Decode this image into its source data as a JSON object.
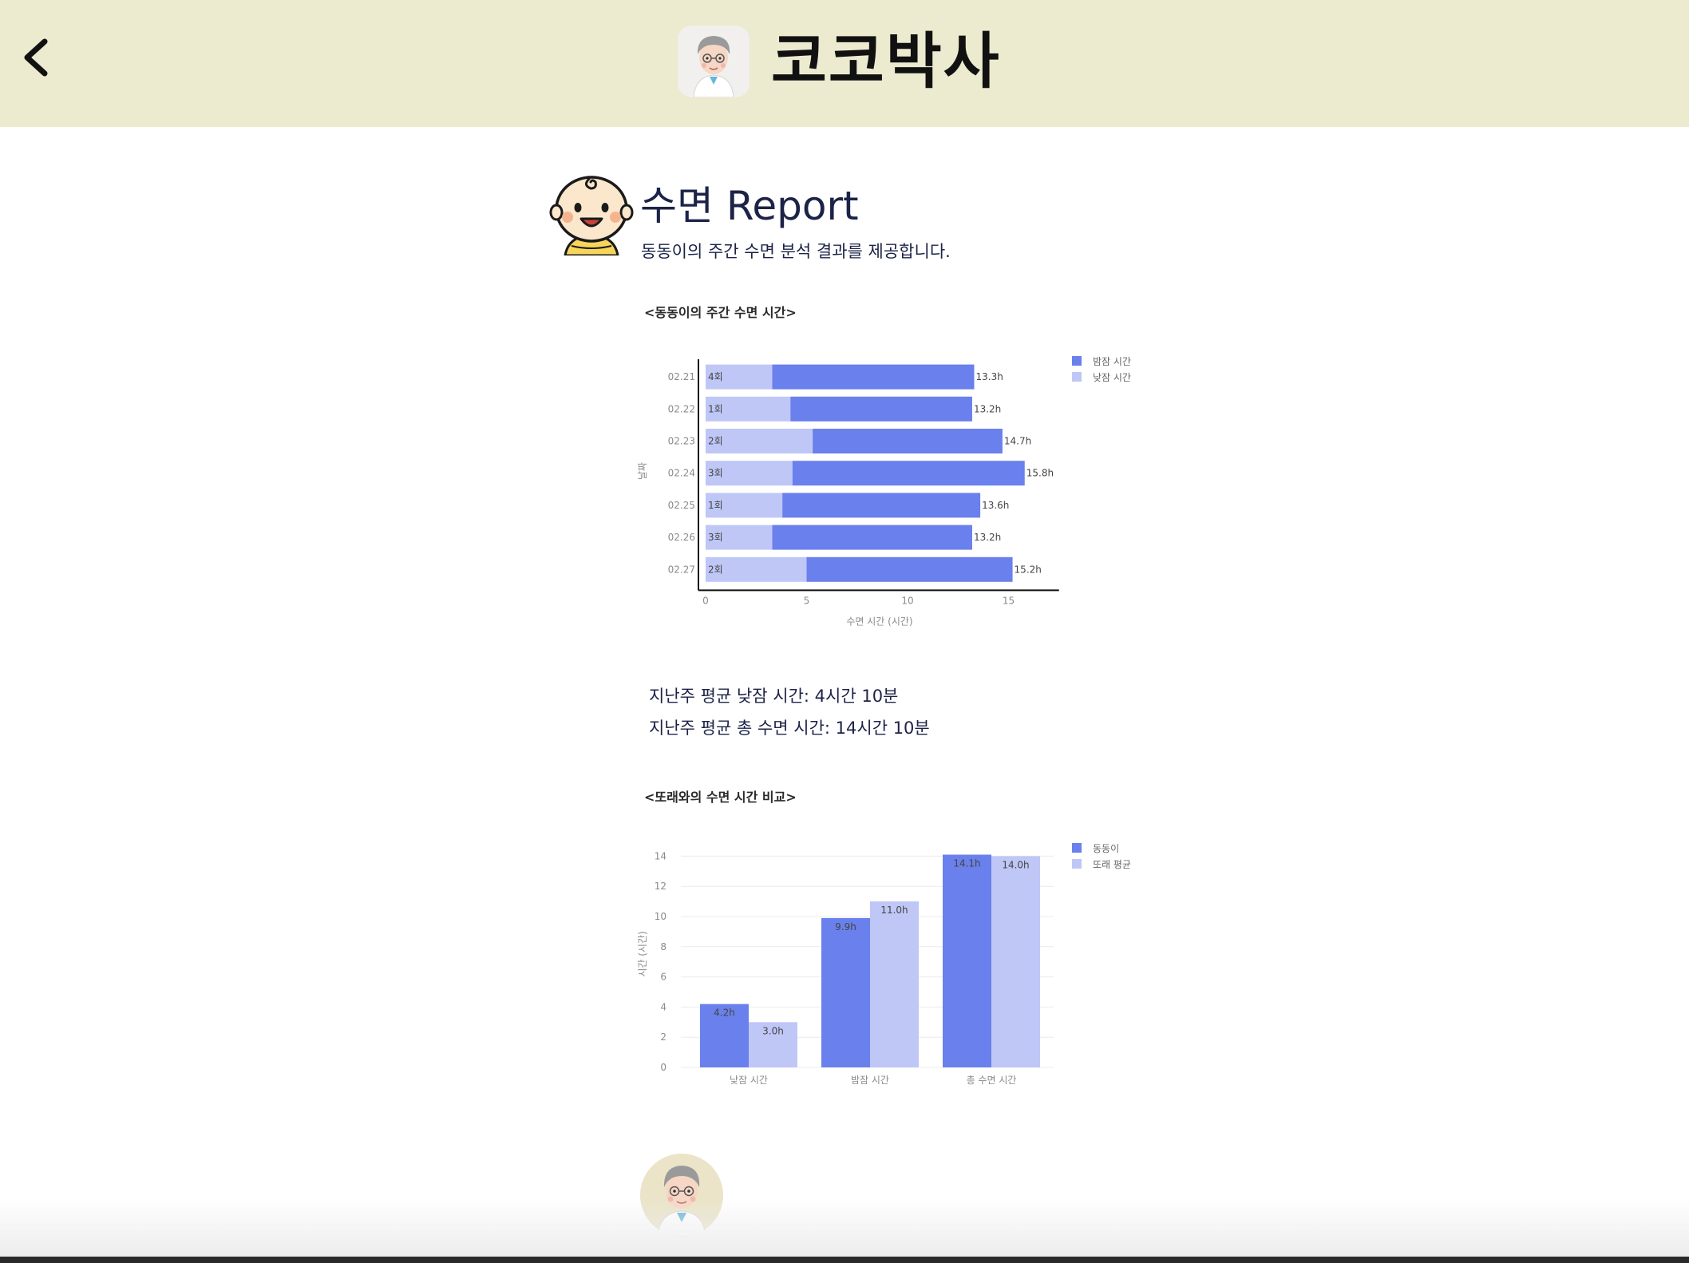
{
  "header": {
    "app_title": "코코박사",
    "back_icon": "chevron-left-icon",
    "logo_icon": "doctor-avatar-icon"
  },
  "report": {
    "title": "수면 Report",
    "subtitle": "동동이의 주간 수면 분석 결과를 제공합니다.",
    "avatar_icon": "baby-face-icon"
  },
  "weekly_chart": {
    "heading": "<동동이의 주간 수면 시간>"
  },
  "stats": {
    "avg_nap": "지난주 평균 낮잠 시간: 4시간 10분",
    "avg_total": "지난주 평균 총 수면 시간: 14시간 10분"
  },
  "compare_chart": {
    "heading": "<또래와의 수면 시간 비교>"
  },
  "footer": {
    "doctor_icon": "doctor-avatar-icon"
  },
  "colors": {
    "header_bg": "#eceacf",
    "night_sleep": "#6a80ec",
    "nap": "#bfc7f7",
    "title_text": "#1c2347"
  },
  "chart_data": [
    {
      "type": "bar",
      "orientation": "horizontal",
      "stacked": true,
      "title": "<동동이의 주간 수면 시간>",
      "xlabel": "수면 시간 (시간)",
      "ylabel": "날짜",
      "xlim": [
        0,
        17.5
      ],
      "xticks": [
        0,
        5,
        10,
        15
      ],
      "categories": [
        "02.21",
        "02.22",
        "02.23",
        "02.24",
        "02.25",
        "02.26",
        "02.27"
      ],
      "series": [
        {
          "name": "낮잠 시간",
          "values": [
            3.3,
            4.2,
            5.3,
            4.3,
            3.8,
            3.3,
            5.0
          ],
          "color": "#bfc7f7"
        },
        {
          "name": "밤잠 시간",
          "values": [
            10.0,
            9.0,
            9.4,
            11.5,
            9.8,
            9.9,
            10.2
          ],
          "color": "#6a80ec"
        }
      ],
      "nap_counts": [
        "4회",
        "1회",
        "2회",
        "3회",
        "1회",
        "3회",
        "2회"
      ],
      "total_labels": [
        "13.3h",
        "13.2h",
        "14.7h",
        "15.8h",
        "13.6h",
        "13.2h",
        "15.2h"
      ],
      "legend": [
        "밤잠 시간",
        "낮잠 시간"
      ],
      "legend_position": "top-right",
      "grid": false
    },
    {
      "type": "bar",
      "title": "<또래와의 수면 시간 비교>",
      "xlabel": "",
      "ylabel": "시간 (시간)",
      "ylim": [
        0,
        14
      ],
      "yticks": [
        0,
        2,
        4,
        6,
        8,
        10,
        12,
        14
      ],
      "categories": [
        "낮잠 시간",
        "밤잠 시간",
        "총 수면 시간"
      ],
      "series": [
        {
          "name": "동동이",
          "values": [
            4.2,
            9.9,
            14.1
          ],
          "labels": [
            "4.2h",
            "9.9h",
            "14.1h"
          ],
          "color": "#6a80ec"
        },
        {
          "name": "또래 평균",
          "values": [
            3.0,
            11.0,
            14.0
          ],
          "labels": [
            "3.0h",
            "11.0h",
            "14.0h"
          ],
          "color": "#bfc7f7"
        }
      ],
      "legend": [
        "동동이",
        "또래 평균"
      ],
      "legend_position": "top-right",
      "grid": true
    }
  ]
}
